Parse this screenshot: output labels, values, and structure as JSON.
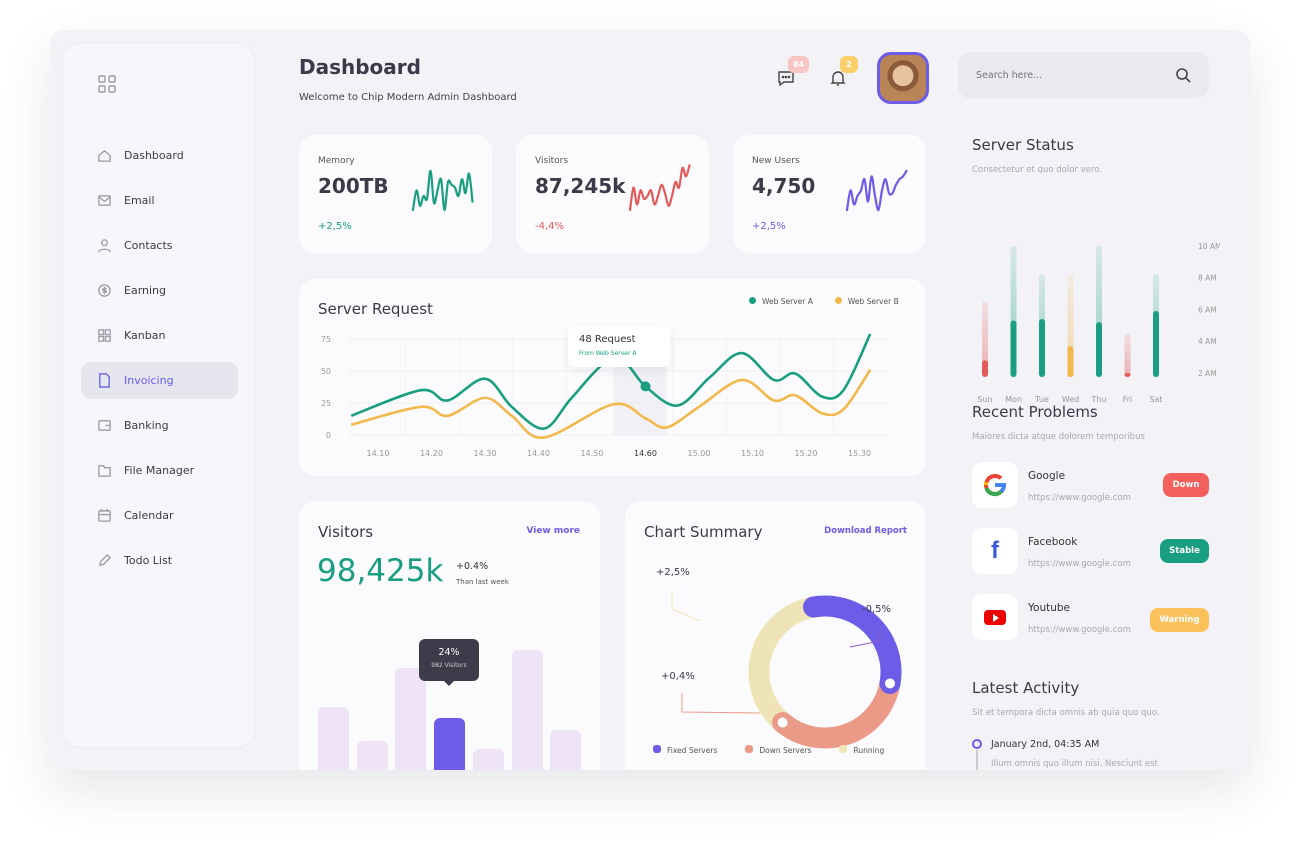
{
  "header": {
    "title": "Dashboard",
    "subtitle": "Welcome to Chip Modern Admin Dashboard",
    "messages_count": "84",
    "notifications_count": "2",
    "search_placeholder": "Search here..."
  },
  "sidebar": {
    "items": [
      {
        "label": "Dashboard"
      },
      {
        "label": "Email"
      },
      {
        "label": "Contacts"
      },
      {
        "label": "Earning"
      },
      {
        "label": "Kanban"
      },
      {
        "label": "Invoicing",
        "active": true
      },
      {
        "label": "Banking"
      },
      {
        "label": "File Manager"
      },
      {
        "label": "Calendar"
      },
      {
        "label": "Todo List"
      }
    ]
  },
  "stats": [
    {
      "label": "Memory",
      "value": "200TB",
      "change": "+2,5%",
      "color": "#1a9e82"
    },
    {
      "label": "Visitors",
      "value": "87,245k",
      "change": "-4,4%",
      "color": "#e25b5b"
    },
    {
      "label": "New Users",
      "value": "4,750",
      "change": "+2,5%",
      "color": "#6c5ce7"
    }
  ],
  "server_request": {
    "title": "Server Request",
    "legend": [
      "Web Server A",
      "Web Server B"
    ],
    "tooltip_title": "48 Request",
    "tooltip_sub": "From Web Server A",
    "chart_data": {
      "type": "line",
      "x_labels": [
        "14.10",
        "14.20",
        "14.30",
        "14.40",
        "14.50",
        "14.60",
        "15.00",
        "15.10",
        "15.20",
        "15.30"
      ],
      "y_ticks": [
        "75",
        "50",
        "25",
        "0"
      ],
      "ylim": [
        0,
        75
      ],
      "highlight": "14.60",
      "series": [
        {
          "name": "Web Server A",
          "color": "#1a9e82",
          "points": [
            [
              -0.5,
              15
            ],
            [
              0.8,
              35
            ],
            [
              1.3,
              27
            ],
            [
              2,
              44
            ],
            [
              2.5,
              22
            ],
            [
              3.1,
              5
            ],
            [
              3.6,
              28
            ],
            [
              4.2,
              55
            ],
            [
              4.6,
              57
            ],
            [
              5.0,
              38
            ],
            [
              5.6,
              23
            ],
            [
              6.2,
              45
            ],
            [
              6.8,
              64
            ],
            [
              7.4,
              43
            ],
            [
              7.8,
              48
            ],
            [
              8.3,
              30
            ],
            [
              8.7,
              35
            ],
            [
              9.2,
              79
            ]
          ]
        },
        {
          "name": "Web Server B",
          "color": "#f2b84b",
          "points": [
            [
              -0.5,
              8
            ],
            [
              0.8,
              22
            ],
            [
              1.3,
              15
            ],
            [
              2,
              29
            ],
            [
              2.5,
              15
            ],
            [
              3.1,
              -2
            ],
            [
              4.4,
              24
            ],
            [
              5.0,
              13
            ],
            [
              5.4,
              6
            ],
            [
              6.0,
              22
            ],
            [
              6.8,
              43
            ],
            [
              7.4,
              27
            ],
            [
              7.8,
              31
            ],
            [
              8.3,
              17
            ],
            [
              8.7,
              20
            ],
            [
              9.2,
              51
            ]
          ]
        }
      ]
    }
  },
  "visitors": {
    "title": "Visitors",
    "link": "View more",
    "value": "98,425k",
    "change": "+0.4%",
    "change_label": "Than last week",
    "tooltip_value": "24%",
    "tooltip_sub": "982 Visitors",
    "chart_data": {
      "type": "bar",
      "values": [
        75,
        41,
        114,
        64,
        33,
        132,
        52
      ],
      "highlight_index": 3
    }
  },
  "summary": {
    "title": "Chart Summary",
    "link": "Download Report",
    "labels": [
      "+2,5%",
      "-0,5%",
      "+0,4%"
    ],
    "chart_data": {
      "type": "pie",
      "series": [
        {
          "name": "Fixed Servers",
          "value": 110,
          "color": "#6c5ce7"
        },
        {
          "name": "Down Servers",
          "value": 120,
          "color": "#ec9a88"
        },
        {
          "name": "Running",
          "value": 130,
          "color": "#efe4b8"
        }
      ]
    }
  },
  "server_status": {
    "title": "Server Status",
    "subtitle": "Consectetur et quo dolor vero.",
    "chart_data": {
      "type": "bar",
      "categories": [
        "Sun",
        "Mon",
        "Tue",
        "Wed",
        "Thu",
        "Fri",
        "Sat"
      ],
      "y_ticks": [
        "10 AM",
        "8 AM",
        "6 AM",
        "4 AM",
        "2 AM"
      ],
      "ylim": [
        2,
        10
      ],
      "total": [
        6.5,
        10,
        8.2,
        8.2,
        10,
        4.5,
        8.2
      ],
      "active": [
        2.8,
        5.3,
        5.4,
        3.7,
        5.2,
        2.0,
        5.9
      ],
      "colors": [
        "#e25b5b",
        "#1a9e82",
        "#1a9e82",
        "#f2b84b",
        "#1a9e82",
        "#e25b5b",
        "#1a9e82"
      ]
    }
  },
  "problems": {
    "title": "Recent Problems",
    "subtitle": "Maiores dicta atque dolorem temporibus",
    "items": [
      {
        "name": "Google",
        "url": "https://www.google.com",
        "status": "Down",
        "color": "#f25f5c"
      },
      {
        "name": "Facebook",
        "url": "https://www.google.com",
        "status": "Stable",
        "color": "#1a9e82"
      },
      {
        "name": "Youtube",
        "url": "https://www.google.com",
        "status": "Warning",
        "color": "#fbc25b"
      }
    ]
  },
  "activity": {
    "title": "Latest Activity",
    "subtitle": "Sit et tempora dicta omnis ab quia quo quo.",
    "items": [
      {
        "time": "January 2nd, 04:35 AM",
        "text": "Illum omnis quo illum nisi. Nesciunt est"
      }
    ]
  }
}
